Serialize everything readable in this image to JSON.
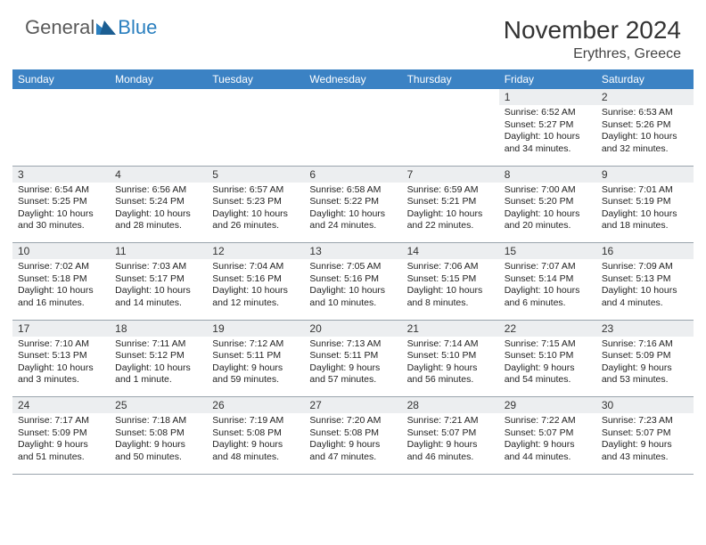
{
  "logo": {
    "general": "General",
    "blue": "Blue"
  },
  "title": "November 2024",
  "location": "Erythres, Greece",
  "colors": {
    "header_bg": "#3b82c4",
    "header_text": "#ffffff",
    "daynum_bg": "#eceef0",
    "border": "#9aa4ad",
    "logo_gray": "#5a5a5a",
    "logo_blue": "#2a7fbf"
  },
  "weekdays": [
    "Sunday",
    "Monday",
    "Tuesday",
    "Wednesday",
    "Thursday",
    "Friday",
    "Saturday"
  ],
  "weeks": [
    [
      null,
      null,
      null,
      null,
      null,
      {
        "d": "1",
        "sr": "6:52 AM",
        "ss": "5:27 PM",
        "dl": "10 hours and 34 minutes."
      },
      {
        "d": "2",
        "sr": "6:53 AM",
        "ss": "5:26 PM",
        "dl": "10 hours and 32 minutes."
      }
    ],
    [
      {
        "d": "3",
        "sr": "6:54 AM",
        "ss": "5:25 PM",
        "dl": "10 hours and 30 minutes."
      },
      {
        "d": "4",
        "sr": "6:56 AM",
        "ss": "5:24 PM",
        "dl": "10 hours and 28 minutes."
      },
      {
        "d": "5",
        "sr": "6:57 AM",
        "ss": "5:23 PM",
        "dl": "10 hours and 26 minutes."
      },
      {
        "d": "6",
        "sr": "6:58 AM",
        "ss": "5:22 PM",
        "dl": "10 hours and 24 minutes."
      },
      {
        "d": "7",
        "sr": "6:59 AM",
        "ss": "5:21 PM",
        "dl": "10 hours and 22 minutes."
      },
      {
        "d": "8",
        "sr": "7:00 AM",
        "ss": "5:20 PM",
        "dl": "10 hours and 20 minutes."
      },
      {
        "d": "9",
        "sr": "7:01 AM",
        "ss": "5:19 PM",
        "dl": "10 hours and 18 minutes."
      }
    ],
    [
      {
        "d": "10",
        "sr": "7:02 AM",
        "ss": "5:18 PM",
        "dl": "10 hours and 16 minutes."
      },
      {
        "d": "11",
        "sr": "7:03 AM",
        "ss": "5:17 PM",
        "dl": "10 hours and 14 minutes."
      },
      {
        "d": "12",
        "sr": "7:04 AM",
        "ss": "5:16 PM",
        "dl": "10 hours and 12 minutes."
      },
      {
        "d": "13",
        "sr": "7:05 AM",
        "ss": "5:16 PM",
        "dl": "10 hours and 10 minutes."
      },
      {
        "d": "14",
        "sr": "7:06 AM",
        "ss": "5:15 PM",
        "dl": "10 hours and 8 minutes."
      },
      {
        "d": "15",
        "sr": "7:07 AM",
        "ss": "5:14 PM",
        "dl": "10 hours and 6 minutes."
      },
      {
        "d": "16",
        "sr": "7:09 AM",
        "ss": "5:13 PM",
        "dl": "10 hours and 4 minutes."
      }
    ],
    [
      {
        "d": "17",
        "sr": "7:10 AM",
        "ss": "5:13 PM",
        "dl": "10 hours and 3 minutes."
      },
      {
        "d": "18",
        "sr": "7:11 AM",
        "ss": "5:12 PM",
        "dl": "10 hours and 1 minute."
      },
      {
        "d": "19",
        "sr": "7:12 AM",
        "ss": "5:11 PM",
        "dl": "9 hours and 59 minutes."
      },
      {
        "d": "20",
        "sr": "7:13 AM",
        "ss": "5:11 PM",
        "dl": "9 hours and 57 minutes."
      },
      {
        "d": "21",
        "sr": "7:14 AM",
        "ss": "5:10 PM",
        "dl": "9 hours and 56 minutes."
      },
      {
        "d": "22",
        "sr": "7:15 AM",
        "ss": "5:10 PM",
        "dl": "9 hours and 54 minutes."
      },
      {
        "d": "23",
        "sr": "7:16 AM",
        "ss": "5:09 PM",
        "dl": "9 hours and 53 minutes."
      }
    ],
    [
      {
        "d": "24",
        "sr": "7:17 AM",
        "ss": "5:09 PM",
        "dl": "9 hours and 51 minutes."
      },
      {
        "d": "25",
        "sr": "7:18 AM",
        "ss": "5:08 PM",
        "dl": "9 hours and 50 minutes."
      },
      {
        "d": "26",
        "sr": "7:19 AM",
        "ss": "5:08 PM",
        "dl": "9 hours and 48 minutes."
      },
      {
        "d": "27",
        "sr": "7:20 AM",
        "ss": "5:08 PM",
        "dl": "9 hours and 47 minutes."
      },
      {
        "d": "28",
        "sr": "7:21 AM",
        "ss": "5:07 PM",
        "dl": "9 hours and 46 minutes."
      },
      {
        "d": "29",
        "sr": "7:22 AM",
        "ss": "5:07 PM",
        "dl": "9 hours and 44 minutes."
      },
      {
        "d": "30",
        "sr": "7:23 AM",
        "ss": "5:07 PM",
        "dl": "9 hours and 43 minutes."
      }
    ]
  ]
}
